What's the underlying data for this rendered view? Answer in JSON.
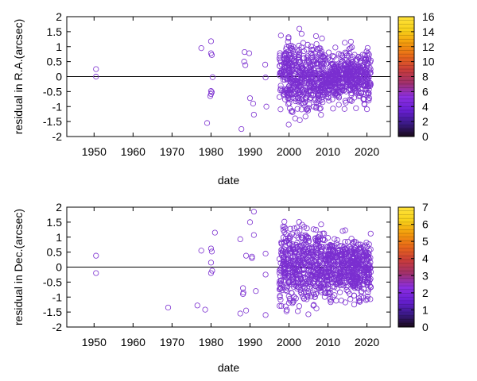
{
  "chart_data": [
    {
      "type": "scatter",
      "xlabel": "date",
      "ylabel": "residual in R.A.(arcsec)",
      "xlim": [
        1943,
        2026
      ],
      "ylim": [
        -2,
        2
      ],
      "x_ticks": [
        1950,
        1960,
        1970,
        1980,
        1990,
        2000,
        2010,
        2020
      ],
      "y_ticks": [
        -2,
        -1.5,
        -1,
        -0.5,
        0,
        0.5,
        1,
        1.5,
        2
      ],
      "y_tick_labels": [
        "-2",
        "-1.5",
        "-1",
        "-0.5",
        "0",
        "0.5",
        "1",
        "1.5",
        "2"
      ],
      "zero_line": true,
      "marker": "open-circle",
      "marker_color": "#7b2fd0",
      "colorbar": {
        "range": [
          0,
          16
        ],
        "ticks": [
          0,
          2,
          4,
          6,
          8,
          10,
          12,
          14,
          16
        ],
        "colors": [
          "#1a0a1a",
          "#3c1a8a",
          "#6a1fd6",
          "#8d2fe0",
          "#a0306e",
          "#c93c3a",
          "#e8661a",
          "#f39a0c",
          "#f8d21a",
          "#ffe23a"
        ]
      },
      "points": [
        [
          1950.5,
          0.25
        ],
        [
          1950.5,
          0.0
        ],
        [
          1977.5,
          0.95
        ],
        [
          1979.0,
          -1.55
        ],
        [
          1980.0,
          1.18
        ],
        [
          1980.0,
          0.78
        ],
        [
          1980.2,
          0.72
        ],
        [
          1980.4,
          -0.02
        ],
        [
          1980.0,
          -0.48
        ],
        [
          1980.2,
          -0.52
        ],
        [
          1980.0,
          -0.58
        ],
        [
          1979.8,
          -0.65
        ],
        [
          1987.8,
          -1.75
        ],
        [
          1988.5,
          0.5
        ],
        [
          1988.8,
          0.38
        ],
        [
          1988.6,
          0.82
        ],
        [
          1989.8,
          0.78
        ],
        [
          1990.0,
          -0.72
        ],
        [
          1990.8,
          -0.9
        ],
        [
          1991.0,
          -1.27
        ],
        [
          1993.9,
          0.4
        ],
        [
          1994.0,
          -0.03
        ],
        [
          1994.2,
          -1.0
        ]
      ],
      "dense_clusters": [
        {
          "x_range": [
            1997.5,
            2008.5
          ],
          "y_spread": 1.9,
          "count": 460
        },
        {
          "x_range": [
            2008.5,
            2021.0
          ],
          "y_spread": 1.3,
          "count": 520
        }
      ]
    },
    {
      "type": "scatter",
      "xlabel": "date",
      "ylabel": "residual in Dec.(arcsec)",
      "xlim": [
        1943,
        2026
      ],
      "ylim": [
        -2,
        2
      ],
      "x_ticks": [
        1950,
        1960,
        1970,
        1980,
        1990,
        2000,
        2010,
        2020
      ],
      "y_ticks": [
        -2,
        -1.5,
        -1,
        -0.5,
        0,
        0.5,
        1,
        1.5,
        2
      ],
      "y_tick_labels": [
        "-2",
        "-1.5",
        "-1",
        "-0.5",
        "0",
        "0.5",
        "1",
        "1.5",
        "2"
      ],
      "zero_line": true,
      "marker": "open-circle",
      "marker_color": "#7b2fd0",
      "colorbar": {
        "range": [
          0,
          7
        ],
        "ticks": [
          0,
          1,
          2,
          3,
          4,
          5,
          6,
          7
        ],
        "colors": [
          "#1a0a1a",
          "#3c1a8a",
          "#6a1fd6",
          "#8d2fe0",
          "#a0306e",
          "#c93c3a",
          "#e8661a",
          "#f39a0c",
          "#f8d21a",
          "#ffe23a"
        ]
      },
      "points": [
        [
          1950.5,
          0.38
        ],
        [
          1950.5,
          -0.2
        ],
        [
          1969.0,
          -1.35
        ],
        [
          1976.5,
          -1.28
        ],
        [
          1977.5,
          0.55
        ],
        [
          1978.5,
          -1.42
        ],
        [
          1980.0,
          0.62
        ],
        [
          1980.2,
          0.52
        ],
        [
          1980.0,
          0.15
        ],
        [
          1980.3,
          -0.12
        ],
        [
          1980.0,
          -0.2
        ],
        [
          1981.0,
          1.15
        ],
        [
          1987.5,
          0.93
        ],
        [
          1987.5,
          -1.55
        ],
        [
          1988.2,
          -0.7
        ],
        [
          1988.3,
          -0.85
        ],
        [
          1988.2,
          -0.9
        ],
        [
          1989.0,
          0.38
        ],
        [
          1989.0,
          -1.45
        ],
        [
          1990.0,
          1.5
        ],
        [
          1990.5,
          0.35
        ],
        [
          1990.5,
          0.3
        ],
        [
          1991.0,
          1.85
        ],
        [
          1991.5,
          -0.8
        ],
        [
          1991.0,
          1.07
        ],
        [
          1994.0,
          0.45
        ],
        [
          1994.0,
          -0.25
        ],
        [
          1994.0,
          -1.6
        ]
      ],
      "dense_clusters": [
        {
          "x_range": [
            1997.5,
            2008.5
          ],
          "y_spread": 1.9,
          "count": 480
        },
        {
          "x_range": [
            2008.5,
            2021.0
          ],
          "y_spread": 1.5,
          "count": 560
        }
      ]
    }
  ]
}
